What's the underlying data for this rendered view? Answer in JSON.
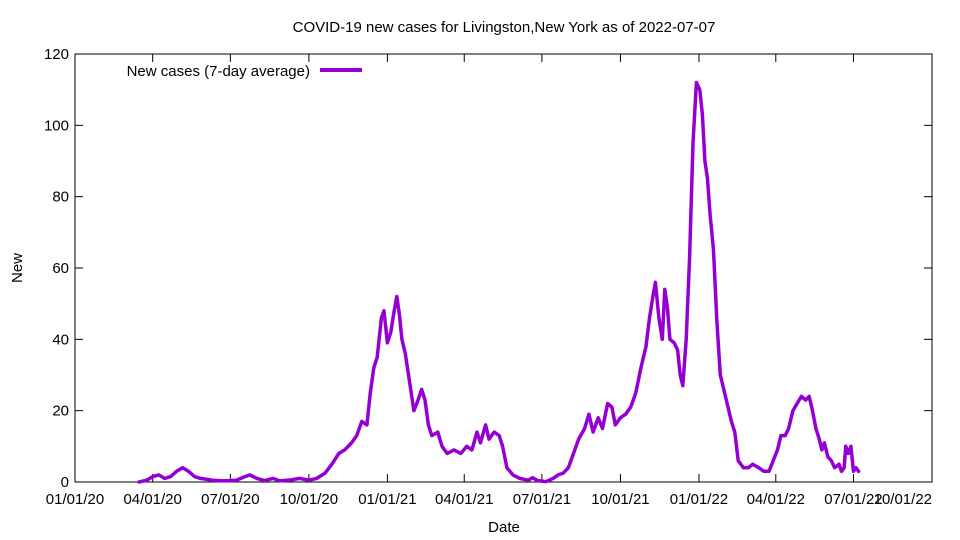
{
  "chart_data": {
    "type": "line",
    "title": "COVID-19 new cases for Livingston,New York as of 2022-07-07",
    "xlabel": "Date",
    "ylabel": "New",
    "ylim": [
      0,
      120
    ],
    "yticks": [
      0,
      20,
      40,
      60,
      80,
      100,
      120
    ],
    "xlim": [
      "2020-01-01",
      "2022-10-01"
    ],
    "xticks": [
      {
        "date": "2020-01-01",
        "label": "01/01/20"
      },
      {
        "date": "2020-04-01",
        "label": "04/01/20"
      },
      {
        "date": "2020-07-01",
        "label": "07/01/20"
      },
      {
        "date": "2020-10-01",
        "label": "10/01/20"
      },
      {
        "date": "2021-01-01",
        "label": "01/01/21"
      },
      {
        "date": "2021-04-01",
        "label": "04/01/21"
      },
      {
        "date": "2021-07-01",
        "label": "07/01/21"
      },
      {
        "date": "2021-10-01",
        "label": "10/01/21"
      },
      {
        "date": "2022-01-01",
        "label": "01/01/22"
      },
      {
        "date": "2022-04-01",
        "label": "04/01/22"
      },
      {
        "date": "2022-07-01",
        "label": "07/01/22"
      },
      {
        "date": "2022-10-01",
        "label": "10/01/22"
      }
    ],
    "grid": false,
    "legend": "top-left",
    "series": [
      {
        "name": "New cases (7-day average)",
        "color": "#9400d3",
        "points": [
          [
            "2020-03-16",
            0
          ],
          [
            "2020-03-25",
            0.5
          ],
          [
            "2020-04-01",
            1.5
          ],
          [
            "2020-04-08",
            2
          ],
          [
            "2020-04-15",
            1
          ],
          [
            "2020-04-22",
            1.5
          ],
          [
            "2020-04-29",
            3
          ],
          [
            "2020-05-06",
            4
          ],
          [
            "2020-05-13",
            3
          ],
          [
            "2020-05-20",
            1.5
          ],
          [
            "2020-05-27",
            1
          ],
          [
            "2020-06-10",
            0.5
          ],
          [
            "2020-06-24",
            0.3
          ],
          [
            "2020-07-08",
            0.5
          ],
          [
            "2020-07-18",
            1.5
          ],
          [
            "2020-07-24",
            2
          ],
          [
            "2020-08-01",
            1
          ],
          [
            "2020-08-10",
            0.4
          ],
          [
            "2020-08-20",
            1
          ],
          [
            "2020-08-28",
            0.3
          ],
          [
            "2020-09-10",
            0.6
          ],
          [
            "2020-09-20",
            1
          ],
          [
            "2020-10-01",
            0.5
          ],
          [
            "2020-10-10",
            1
          ],
          [
            "2020-10-20",
            2.5
          ],
          [
            "2020-10-28",
            5
          ],
          [
            "2020-11-05",
            8
          ],
          [
            "2020-11-12",
            9
          ],
          [
            "2020-11-20",
            11
          ],
          [
            "2020-11-26",
            13
          ],
          [
            "2020-12-02",
            17
          ],
          [
            "2020-12-08",
            16
          ],
          [
            "2020-12-12",
            25
          ],
          [
            "2020-12-16",
            32
          ],
          [
            "2020-12-20",
            35
          ],
          [
            "2020-12-25",
            46
          ],
          [
            "2020-12-28",
            48
          ],
          [
            "2021-01-01",
            39
          ],
          [
            "2021-01-05",
            42
          ],
          [
            "2021-01-09",
            48
          ],
          [
            "2021-01-12",
            52
          ],
          [
            "2021-01-15",
            47
          ],
          [
            "2021-01-18",
            40
          ],
          [
            "2021-01-22",
            36
          ],
          [
            "2021-01-27",
            28
          ],
          [
            "2021-02-01",
            20
          ],
          [
            "2021-02-06",
            23
          ],
          [
            "2021-02-10",
            26
          ],
          [
            "2021-02-14",
            23
          ],
          [
            "2021-02-18",
            16
          ],
          [
            "2021-02-22",
            13
          ],
          [
            "2021-03-01",
            14
          ],
          [
            "2021-03-06",
            10
          ],
          [
            "2021-03-12",
            8
          ],
          [
            "2021-03-20",
            9
          ],
          [
            "2021-03-28",
            8
          ],
          [
            "2021-04-04",
            10
          ],
          [
            "2021-04-10",
            9
          ],
          [
            "2021-04-16",
            14
          ],
          [
            "2021-04-20",
            11
          ],
          [
            "2021-04-26",
            16
          ],
          [
            "2021-04-30",
            12
          ],
          [
            "2021-05-06",
            14
          ],
          [
            "2021-05-12",
            13
          ],
          [
            "2021-05-16",
            10
          ],
          [
            "2021-05-21",
            4
          ],
          [
            "2021-05-28",
            2
          ],
          [
            "2021-06-05",
            1
          ],
          [
            "2021-06-15",
            0.5
          ],
          [
            "2021-06-20",
            1.2
          ],
          [
            "2021-06-26",
            0.4
          ],
          [
            "2021-07-06",
            0.1
          ],
          [
            "2021-07-14",
            1
          ],
          [
            "2021-07-20",
            2
          ],
          [
            "2021-07-26",
            2.5
          ],
          [
            "2021-08-01",
            4
          ],
          [
            "2021-08-07",
            8
          ],
          [
            "2021-08-13",
            12
          ],
          [
            "2021-08-20",
            15
          ],
          [
            "2021-08-25",
            19
          ],
          [
            "2021-08-30",
            14
          ],
          [
            "2021-09-05",
            18
          ],
          [
            "2021-09-10",
            15
          ],
          [
            "2021-09-16",
            22
          ],
          [
            "2021-09-21",
            21
          ],
          [
            "2021-09-25",
            16
          ],
          [
            "2021-10-01",
            18
          ],
          [
            "2021-10-07",
            19
          ],
          [
            "2021-10-13",
            21
          ],
          [
            "2021-10-19",
            25
          ],
          [
            "2021-10-25",
            32
          ],
          [
            "2021-10-31",
            38
          ],
          [
            "2021-11-04",
            46
          ],
          [
            "2021-11-08",
            52
          ],
          [
            "2021-11-11",
            56
          ],
          [
            "2021-11-15",
            46
          ],
          [
            "2021-11-19",
            40
          ],
          [
            "2021-11-22",
            54
          ],
          [
            "2021-11-25",
            49
          ],
          [
            "2021-11-28",
            40
          ],
          [
            "2021-12-03",
            39
          ],
          [
            "2021-12-07",
            37
          ],
          [
            "2021-12-10",
            30
          ],
          [
            "2021-12-13",
            27
          ],
          [
            "2021-12-17",
            40
          ],
          [
            "2021-12-21",
            63
          ],
          [
            "2021-12-25",
            95
          ],
          [
            "2021-12-29",
            112
          ],
          [
            "2022-01-02",
            110
          ],
          [
            "2022-01-05",
            103
          ],
          [
            "2022-01-08",
            90
          ],
          [
            "2022-01-11",
            85
          ],
          [
            "2022-01-14",
            75
          ],
          [
            "2022-01-18",
            65
          ],
          [
            "2022-01-22",
            45
          ],
          [
            "2022-01-26",
            30
          ],
          [
            "2022-01-31",
            25
          ],
          [
            "2022-02-04",
            21
          ],
          [
            "2022-02-08",
            17
          ],
          [
            "2022-02-12",
            14
          ],
          [
            "2022-02-16",
            6
          ],
          [
            "2022-02-22",
            4
          ],
          [
            "2022-02-28",
            4
          ],
          [
            "2022-03-05",
            5
          ],
          [
            "2022-03-12",
            4
          ],
          [
            "2022-03-18",
            3
          ],
          [
            "2022-03-24",
            3
          ],
          [
            "2022-03-29",
            6
          ],
          [
            "2022-04-03",
            9
          ],
          [
            "2022-04-07",
            13
          ],
          [
            "2022-04-12",
            13
          ],
          [
            "2022-04-16",
            15
          ],
          [
            "2022-04-21",
            20
          ],
          [
            "2022-04-26",
            22
          ],
          [
            "2022-05-01",
            24
          ],
          [
            "2022-05-06",
            23
          ],
          [
            "2022-05-10",
            24
          ],
          [
            "2022-05-14",
            20
          ],
          [
            "2022-05-18",
            15
          ],
          [
            "2022-05-22",
            12
          ],
          [
            "2022-05-25",
            9
          ],
          [
            "2022-05-28",
            11
          ],
          [
            "2022-06-01",
            7
          ],
          [
            "2022-06-05",
            6
          ],
          [
            "2022-06-09",
            4
          ],
          [
            "2022-06-14",
            5
          ],
          [
            "2022-06-17",
            3
          ],
          [
            "2022-06-20",
            4
          ],
          [
            "2022-06-22",
            10
          ],
          [
            "2022-06-25",
            8
          ],
          [
            "2022-06-28",
            10
          ],
          [
            "2022-07-01",
            3
          ],
          [
            "2022-07-04",
            4
          ],
          [
            "2022-07-07",
            3
          ]
        ]
      }
    ]
  }
}
